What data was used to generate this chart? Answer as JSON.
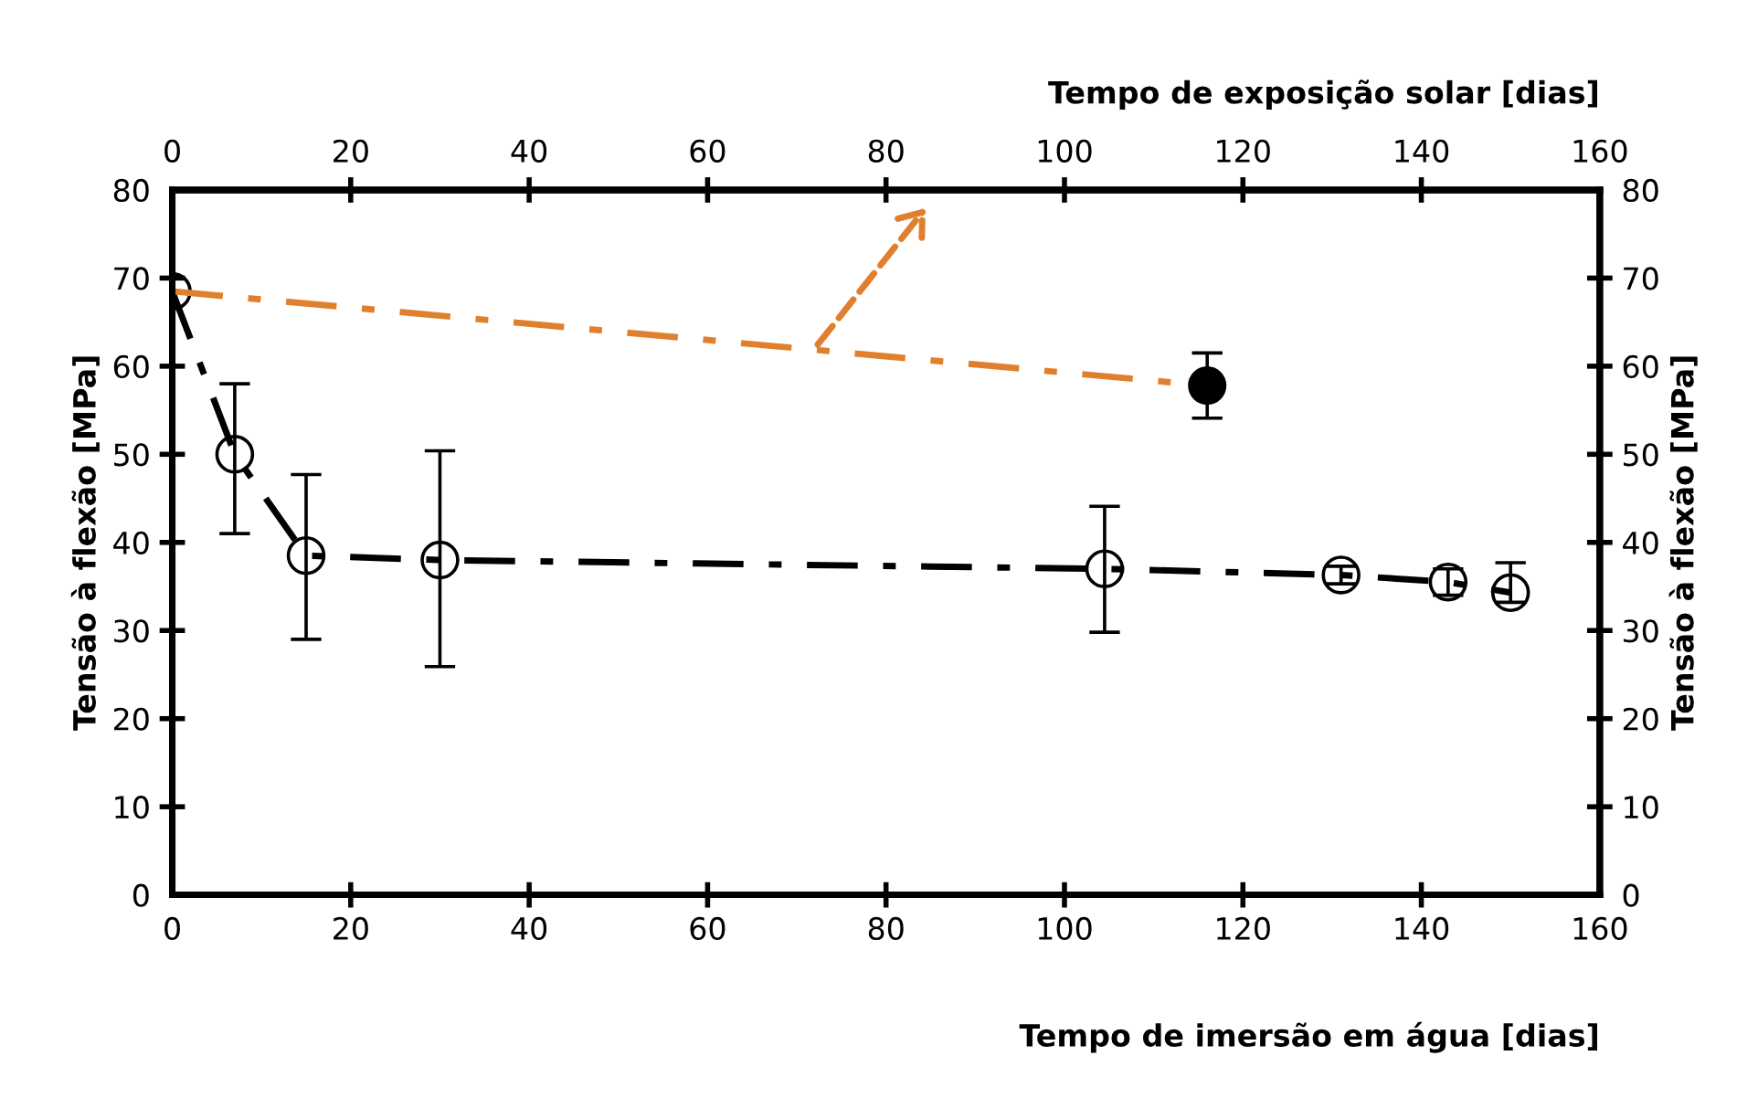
{
  "chart_data": {
    "type": "line",
    "xlabel": "Tempo de imersão em água [dias]",
    "x2label": "Tempo de exposição solar [dias]",
    "ylabel": "Tensão à flexão [MPa]",
    "y2label": "Tensão à flexão [MPa]",
    "xlim": [
      0,
      160
    ],
    "xticks": [
      0,
      20,
      40,
      60,
      80,
      100,
      120,
      140,
      160
    ],
    "x2lim": [
      0,
      160
    ],
    "x2ticks": [
      0,
      20,
      40,
      60,
      80,
      100,
      120,
      140,
      160
    ],
    "ylim": [
      0,
      80
    ],
    "yticks": [
      0,
      10,
      20,
      30,
      40,
      50,
      60,
      70,
      80
    ],
    "y2lim": [
      0,
      80
    ],
    "y2ticks": [
      0,
      10,
      20,
      30,
      40,
      50,
      60,
      70,
      80
    ],
    "grid": false,
    "series": [
      {
        "color": "#000000",
        "marker": "circle",
        "line_style": "dashdot",
        "x": [
          0,
          7,
          15,
          30,
          104.5,
          131,
          143,
          150
        ],
        "values": [
          68.5,
          50,
          38.5,
          38,
          37,
          36.3,
          35.5,
          34.3
        ],
        "errors": [
          null,
          [
            41,
            58
          ],
          [
            29,
            47.7
          ],
          [
            25.9,
            50.4
          ],
          [
            29.8,
            44.1
          ],
          [
            35.3,
            37.3
          ],
          [
            34,
            37
          ],
          [
            33.2,
            37.7
          ]
        ]
      },
      {
        "axis": "x2",
        "color": "#e0802e",
        "marker": "none",
        "line_style": "dashdot",
        "x": [
          0,
          116
        ],
        "values": [
          68.5,
          57.8
        ]
      },
      {
        "type": "scatter",
        "axis": "x2",
        "color": "#000000",
        "marker": "circle",
        "x": [
          116
        ],
        "values": [
          57.8
        ],
        "errors": [
          [
            54.1,
            61.5
          ]
        ]
      }
    ]
  }
}
